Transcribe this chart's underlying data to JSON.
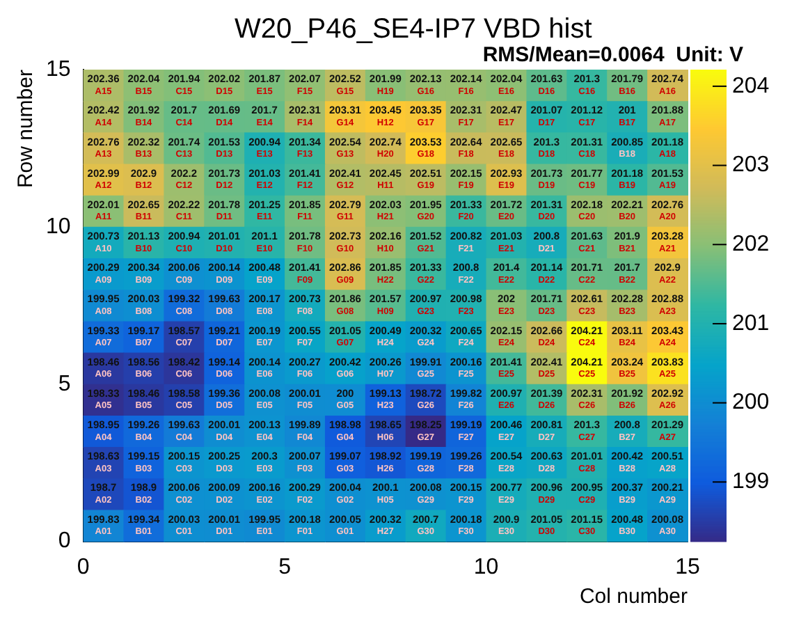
{
  "chart_data": {
    "type": "heatmap",
    "title": "W20_P46_SE4-IP7 VBD hist",
    "xlabel": "Col number",
    "ylabel": "Row number",
    "annotations": [
      "RMS/Mean=0.0064",
      "Unit: V"
    ],
    "xlim": [
      0,
      15
    ],
    "xticks": [
      0,
      5,
      10,
      15
    ],
    "ylim": [
      0,
      15
    ],
    "yticks": [
      0,
      5,
      10,
      15
    ],
    "clim": [
      198.25,
      204.21
    ],
    "cticks": [
      199,
      200,
      201,
      202,
      203,
      204
    ],
    "grid": false,
    "legend": false,
    "cells": [
      [
        202.36,
        202.04,
        201.94,
        202.02,
        201.87,
        202.07,
        202.52,
        201.99,
        202.13,
        202.14,
        202.04,
        201.63,
        201.3,
        201.79,
        202.74
      ],
      [
        202.42,
        201.92,
        201.7,
        201.69,
        201.7,
        202.31,
        203.31,
        203.45,
        203.35,
        202.31,
        202.47,
        201.07,
        201.12,
        201,
        201.88
      ],
      [
        202.76,
        202.32,
        201.74,
        201.53,
        200.94,
        201.34,
        202.54,
        202.74,
        203.53,
        202.64,
        202.65,
        201.3,
        201.31,
        200.85,
        201.18
      ],
      [
        202.99,
        202.9,
        202.2,
        201.73,
        201.03,
        201.41,
        202.41,
        202.45,
        202.51,
        202.15,
        202.93,
        201.73,
        201.77,
        201.18,
        201.53
      ],
      [
        202.01,
        202.65,
        202.22,
        201.78,
        201.25,
        201.85,
        202.79,
        202.03,
        201.95,
        201.33,
        201.72,
        201.31,
        202.18,
        202.21,
        202.76
      ],
      [
        200.73,
        201.13,
        200.94,
        201.01,
        201.1,
        201.78,
        202.73,
        202.16,
        201.52,
        200.82,
        201.03,
        200.8,
        201.63,
        201.9,
        203.28
      ],
      [
        200.29,
        200.34,
        200.06,
        200.14,
        200.48,
        201.41,
        202.86,
        201.85,
        201.33,
        200.8,
        201.4,
        201.14,
        201.71,
        201.7,
        202.9
      ],
      [
        199.95,
        200.03,
        199.32,
        199.63,
        200.17,
        200.73,
        201.86,
        201.57,
        200.97,
        200.98,
        202,
        201.71,
        202.61,
        202.28,
        202.88
      ],
      [
        199.33,
        199.17,
        198.57,
        199.21,
        200.19,
        200.55,
        201.05,
        200.49,
        200.32,
        200.65,
        202.15,
        202.66,
        204.21,
        203.11,
        203.43
      ],
      [
        198.46,
        198.56,
        198.42,
        199.14,
        200.14,
        200.27,
        200.42,
        200.26,
        199.91,
        200.16,
        201.41,
        202.41,
        204.21,
        203.24,
        203.83
      ],
      [
        198.33,
        198.46,
        198.58,
        199.36,
        200.08,
        200.01,
        200,
        199.13,
        198.72,
        199.82,
        200.97,
        201.39,
        202.31,
        201.92,
        202.92
      ],
      [
        198.95,
        199.26,
        199.63,
        200.01,
        200.13,
        199.89,
        198.98,
        198.65,
        198.25,
        199.19,
        200.46,
        200.81,
        201.3,
        200.8,
        201.29
      ],
      [
        198.63,
        199.15,
        200.15,
        200.25,
        200.3,
        200.07,
        199.07,
        198.92,
        199.19,
        199.26,
        200.54,
        200.63,
        201.01,
        200.42,
        200.51
      ],
      [
        198.7,
        198.9,
        200.06,
        200.09,
        200.16,
        200.29,
        200.04,
        200.1,
        200.08,
        200.15,
        200.77,
        200.96,
        200.95,
        200.37,
        200.21
      ],
      [
        199.83,
        199.34,
        200.03,
        200.01,
        199.95,
        200.18,
        200.05,
        200.32,
        200.7,
        200.18,
        200.9,
        201.05,
        201.15,
        200.48,
        200.08
      ]
    ],
    "cell_labels": [
      [
        "202.36\nA15",
        "202.04\nB15",
        "201.94\nC15",
        "202.02\nD15",
        "201.87\nE15",
        "202.07\nF15",
        "202.52\nG15",
        "201.99\nH19",
        "202.13\nG16",
        "202.14\nF16",
        "202.04\nE16",
        "201.63\nD16",
        "201.3\nC16",
        "201.79\nB16",
        "202.74\nA16"
      ],
      [
        "202.42\nA14",
        "201.92\nB14",
        "201.7\nC14",
        "201.69\nD14",
        "201.7\nE14",
        "202.31\nF14",
        "203.31\nG14",
        "203.45\nH12",
        "203.35\nG17",
        "202.31\nF17",
        "202.47\nE17",
        "201.07\nD17",
        "201.12\nC17",
        "201\nB17",
        "201.88\nA17"
      ],
      [
        "202.76\nA13",
        "202.32\nB13",
        "201.74\nC13",
        "201.53\nD13",
        "200.94\nE13",
        "201.34\nF13",
        "202.54\nG13",
        "202.74\nH20",
        "203.53\nG18",
        "202.64\nF18",
        "202.65\nE18",
        "201.3\nD18",
        "201.31\nC18",
        "200.85\nB18",
        "201.18\nA18"
      ],
      [
        "202.99\nA12",
        "202.9\nB12",
        "202.2\nC12",
        "201.73\nD12",
        "201.03\nE12",
        "201.41\nF12",
        "202.41\nG12",
        "202.45\nH11",
        "202.51\nG19",
        "202.15\nF19",
        "202.93\nE19",
        "201.73\nD19",
        "201.77\nC19",
        "201.18\nB19",
        "201.53\nA19"
      ],
      [
        "202.01\nA11",
        "202.65\nB11",
        "202.22\nC11",
        "201.78\nD11",
        "201.25\nE11",
        "201.85\nF11",
        "202.79\nG11",
        "202.03\nH21",
        "201.95\nG20",
        "201.33\nF20",
        "201.72\nE20",
        "201.31\nD20",
        "202.18\nC20",
        "202.21\nB20",
        "202.76\nA20"
      ],
      [
        "200.73\nA10",
        "201.13\nB10",
        "200.94\nC10",
        "201.01\nD10",
        "201.1\nE10",
        "201.78\nF10",
        "202.73\nG10",
        "202.16\nH10",
        "201.52\nG21",
        "200.82\nF21",
        "201.03\nE21",
        "200.8\nD21",
        "201.63\nC21",
        "201.9\nB21",
        "203.28\nA21"
      ],
      [
        "200.29\nA09",
        "200.34\nB09",
        "200.06\nC09",
        "200.14\nD09",
        "200.48\nE09",
        "201.41\nF09",
        "202.86\nG09",
        "201.85\nH22",
        "201.33\nG22",
        "200.8\nF22",
        "201.4\nE22",
        "201.14\nD22",
        "201.71\nC22",
        "201.7\nB22",
        "202.9\nA22"
      ],
      [
        "199.95\nA08",
        "200.03\nB08",
        "199.32\nC08",
        "199.63\nD08",
        "200.17\nE08",
        "200.73\nF08",
        "201.86\nG08",
        "201.57\nH09",
        "200.97\nG23",
        "200.98\nF23",
        "202\nE23",
        "201.71\nD23",
        "202.61\nC23",
        "202.28\nB23",
        "202.88\nA23"
      ],
      [
        "199.33\nA07",
        "199.17\nB07",
        "198.57\nC07",
        "199.21\nD07",
        "200.19\nE07",
        "200.55\nF07",
        "201.05\nG07",
        "200.49\nH24",
        "200.32\nG24",
        "200.65\nF24",
        "202.15\nE24",
        "202.66\nD24",
        "204.21\nC24",
        "203.11\nB24",
        "203.43\nA24"
      ],
      [
        "198.46\nA06",
        "198.56\nB06",
        "198.42\nC06",
        "199.14\nD06",
        "200.14\nE06",
        "200.27\nF06",
        "200.42\nG06",
        "200.26\nH07",
        "199.91\nG25",
        "200.16\nF25",
        "201.41\nE25",
        "202.41\nD25",
        "204.21\nC25",
        "203.24\nB25",
        "203.83\nA25"
      ],
      [
        "198.33\nA05",
        "198.46\nB05",
        "198.58\nC05",
        "199.36\nD05",
        "200.08\nE05",
        "200.01\nF05",
        "200\nG05",
        "199.13\nH23",
        "198.72\nG26",
        "199.82\nF26",
        "200.97\nE26",
        "201.39\nD26",
        "202.31\nC26",
        "201.92\nB26",
        "202.92\nA26"
      ],
      [
        "198.95\nA04",
        "199.26\nB04",
        "199.63\nC04",
        "200.01\nD04",
        "200.13\nE04",
        "199.89\nF04",
        "198.98\nG04",
        "198.65\nH06",
        "198.25\nG27",
        "199.19\nF27",
        "200.46\nE27",
        "200.81\nD27",
        "201.3\nC27",
        "200.8\nB27",
        "201.29\nA27"
      ],
      [
        "198.63\nA03",
        "199.15\nB03",
        "200.15\nC03",
        "200.25\nD03",
        "200.3\nE03",
        "200.07\nF03",
        "199.07\nG03",
        "198.92\nH26",
        "199.19\nG28",
        "199.26\nF28",
        "200.54\nE28",
        "200.63\nD28",
        "201.01\nC28",
        "200.42\nB28",
        "200.51\nA28"
      ],
      [
        "198.7\nA02",
        "198.9\nB02",
        "200.06\nC02",
        "200.09\nD02",
        "200.16\nE02",
        "200.29\nF02",
        "200.04\nG02",
        "200.1\nH05",
        "200.08\nG29",
        "200.15\nF29",
        "200.77\nE29",
        "200.96\nD29",
        "200.95\nC29",
        "200.37\nB29",
        "200.21\nA29"
      ],
      [
        "199.83\nA01",
        "199.34\nB01",
        "200.03\nC01",
        "200.01\nD01",
        "199.95\nE01",
        "200.18\nF01",
        "200.05\nG01",
        "200.32\nH27",
        "200.7\nG30",
        "200.18\nF30",
        "200.9\nE30",
        "201.05\nD30",
        "201.15\nC30",
        "200.48\nB30",
        "200.08\nA30"
      ]
    ]
  }
}
